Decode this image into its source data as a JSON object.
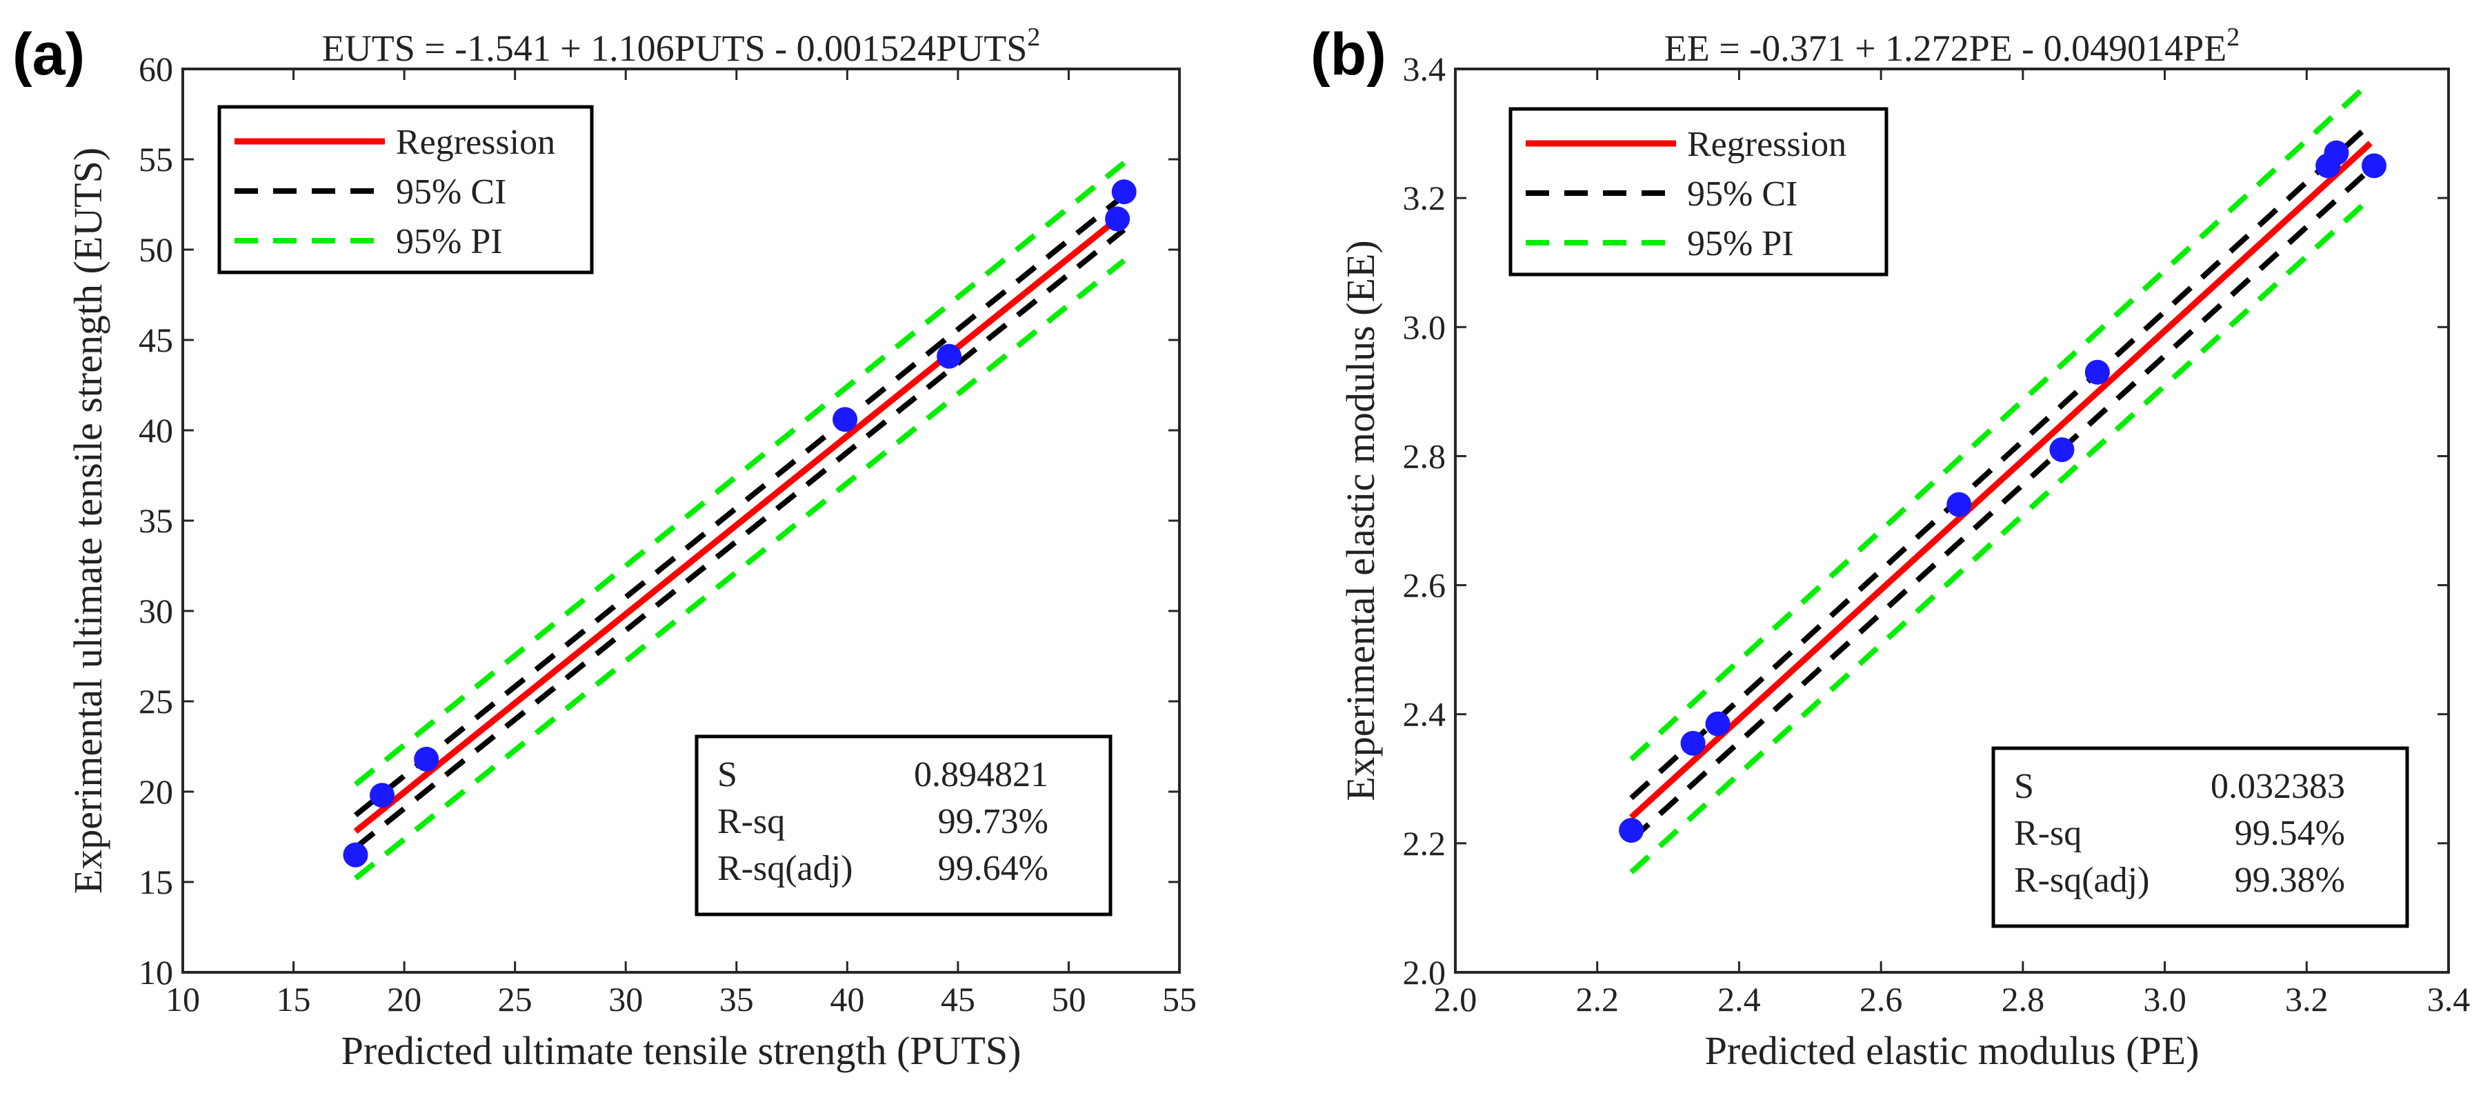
{
  "chart_data": [
    {
      "type": "scatter",
      "panel_label": "(a)",
      "title": "EUTS = -1.541 + 1.106PUTS - 0.001524PUTS",
      "title_superscript": "2",
      "xlabel": "Predicted ultimate tensile strength (PUTS)",
      "ylabel": "Experimental ultimate tensile strength (EUTS)",
      "xlim": [
        10,
        55
      ],
      "ylim": [
        10,
        60
      ],
      "xticks": [
        10,
        15,
        20,
        25,
        30,
        35,
        40,
        45,
        50,
        55
      ],
      "xtick_labels": [
        "10",
        "15",
        "20",
        "25",
        "30",
        "35",
        "40",
        "45",
        "50",
        "55"
      ],
      "yticks": [
        10,
        15,
        20,
        25,
        30,
        35,
        40,
        45,
        50,
        55,
        60
      ],
      "ytick_labels": [
        "10",
        "15",
        "20",
        "25",
        "30",
        "35",
        "40",
        "45",
        "50",
        "55",
        "60"
      ],
      "grid": false,
      "points": {
        "x": [
          17.8,
          19.0,
          21.0,
          39.9,
          44.6,
          52.2,
          52.5
        ],
        "y": [
          16.5,
          19.8,
          21.8,
          40.6,
          44.1,
          51.7,
          53.2
        ]
      },
      "lines": [
        {
          "name": "Regression",
          "color": "#ff0000",
          "dash": "solid",
          "x": [
            17.8,
            52.5
          ],
          "y": [
            17.8,
            52.0
          ]
        },
        {
          "name": "95% CI upper",
          "color": "#000000",
          "dash": "dashed",
          "x": [
            17.8,
            52.5
          ],
          "y": [
            18.7,
            53.0
          ]
        },
        {
          "name": "95% CI lower",
          "color": "#000000",
          "dash": "dashed",
          "x": [
            17.8,
            52.5
          ],
          "y": [
            16.9,
            51.1
          ]
        },
        {
          "name": "95% PI upper",
          "color": "#00ee00",
          "dash": "dashed",
          "x": [
            17.8,
            52.5
          ],
          "y": [
            20.4,
            54.8
          ]
        },
        {
          "name": "95% PI lower",
          "color": "#00ee00",
          "dash": "dashed",
          "x": [
            17.8,
            52.5
          ],
          "y": [
            15.2,
            49.4
          ]
        }
      ],
      "point_color": "#1a1aff",
      "legend": {
        "location": "top-left",
        "entries": [
          {
            "label": "Regression",
            "color": "#ff0000",
            "dash": "solid"
          },
          {
            "label": "95% CI",
            "color": "#000000",
            "dash": "dashed"
          },
          {
            "label": "95% PI",
            "color": "#00ee00",
            "dash": "dashed"
          }
        ]
      },
      "stats": {
        "location": "bottom-right",
        "rows": [
          {
            "label": "S",
            "value": "0.894821"
          },
          {
            "label": "R-sq",
            "value": "99.73%"
          },
          {
            "label": "R-sq(adj)",
            "value": "99.64%"
          }
        ]
      }
    },
    {
      "type": "scatter",
      "panel_label": "(b)",
      "title": "EE = -0.371 + 1.272PE - 0.049014PE",
      "title_superscript": "2",
      "xlabel": "Predicted elastic modulus (PE)",
      "ylabel": "Experimental elastic modulus (EE)",
      "xlim": [
        2.0,
        3.4
      ],
      "ylim": [
        2.0,
        3.4
      ],
      "xticks": [
        2.0,
        2.2,
        2.4,
        2.6,
        2.8,
        3.0,
        3.2,
        3.4
      ],
      "xtick_labels": [
        "2.0",
        "2.2",
        "2.4",
        "2.6",
        "2.8",
        "3.0",
        "3.2",
        "3.4"
      ],
      "yticks": [
        2.0,
        2.2,
        2.4,
        2.6,
        2.8,
        3.0,
        3.2,
        3.4
      ],
      "ytick_labels": [
        "2.0",
        "2.2",
        "2.4",
        "2.6",
        "2.8",
        "3.0",
        "3.2",
        "3.4"
      ],
      "grid": false,
      "points": {
        "x": [
          2.248,
          2.335,
          2.37,
          2.71,
          2.855,
          2.905,
          3.23,
          3.242,
          3.295
        ],
        "y": [
          2.22,
          2.355,
          2.385,
          2.725,
          2.81,
          2.93,
          3.25,
          3.27,
          3.25
        ]
      },
      "lines": [
        {
          "name": "Regression",
          "color": "#ff0000",
          "dash": "solid",
          "x": [
            2.248,
            3.29
          ],
          "y": [
            2.24,
            3.285
          ]
        },
        {
          "name": "95% CI upper",
          "color": "#000000",
          "dash": "dashed",
          "x": [
            2.248,
            3.29
          ],
          "y": [
            2.27,
            3.315
          ]
        },
        {
          "name": "95% CI lower",
          "color": "#000000",
          "dash": "dashed",
          "x": [
            2.248,
            3.29
          ],
          "y": [
            2.205,
            3.245
          ]
        },
        {
          "name": "95% PI upper",
          "color": "#00ee00",
          "dash": "dashed",
          "x": [
            2.248,
            3.29
          ],
          "y": [
            2.33,
            3.38
          ]
        },
        {
          "name": "95% PI lower",
          "color": "#00ee00",
          "dash": "dashed",
          "x": [
            2.248,
            3.29
          ],
          "y": [
            2.155,
            3.2
          ]
        }
      ],
      "point_color": "#1a1aff",
      "legend": {
        "location": "top-left",
        "entries": [
          {
            "label": "Regression",
            "color": "#ff0000",
            "dash": "solid"
          },
          {
            "label": "95% CI",
            "color": "#000000",
            "dash": "dashed"
          },
          {
            "label": "95% PI",
            "color": "#00ee00",
            "dash": "dashed"
          }
        ]
      },
      "stats": {
        "location": "bottom-right",
        "rows": [
          {
            "label": "S",
            "value": "0.032383"
          },
          {
            "label": "R-sq",
            "value": "99.54%"
          },
          {
            "label": "R-sq(adj)",
            "value": "99.38%"
          }
        ]
      }
    }
  ]
}
